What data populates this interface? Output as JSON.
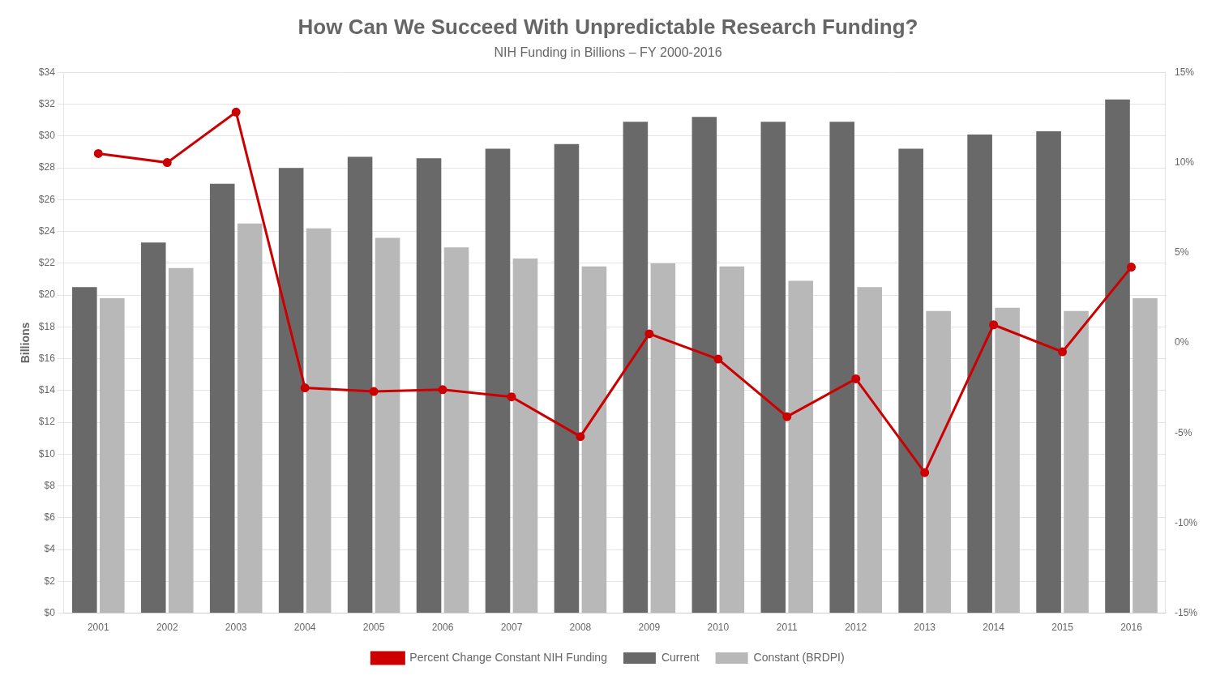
{
  "chart_data": {
    "type": "bar",
    "title": "How Can We Succeed With Unpredictable Research Funding?",
    "subtitle": "NIH Funding in Billions – FY 2000-2016",
    "ylabel": "Billions",
    "categories": [
      "2001",
      "2002",
      "2003",
      "2004",
      "2005",
      "2006",
      "2007",
      "2008",
      "2009",
      "2010",
      "2011",
      "2012",
      "2013",
      "2014",
      "2015",
      "2016"
    ],
    "series": [
      {
        "name": "Current",
        "type": "bar",
        "color": "#696969",
        "values": [
          20.5,
          23.3,
          27.0,
          28.0,
          28.7,
          28.6,
          29.2,
          29.5,
          30.9,
          31.2,
          30.9,
          30.9,
          29.2,
          30.1,
          30.3,
          32.3
        ]
      },
      {
        "name": "Constant (BRDPI)",
        "type": "bar",
        "color": "#b8b8b8",
        "values": [
          19.8,
          21.7,
          24.5,
          24.2,
          23.6,
          23.0,
          22.3,
          21.8,
          22.0,
          21.8,
          20.9,
          20.5,
          19.0,
          19.2,
          19.0,
          19.8
        ]
      },
      {
        "name": "Percent Change Constant NIH Funding",
        "type": "line",
        "color": "#cc0000",
        "marker": "circle",
        "axis": "y2",
        "values": [
          10.5,
          10.0,
          12.8,
          -2.5,
          -2.7,
          -2.6,
          -3.0,
          -5.2,
          0.5,
          -0.9,
          -4.1,
          -2.0,
          -7.2,
          1.0,
          -0.5,
          4.2
        ]
      }
    ],
    "ylim": [
      0,
      34
    ],
    "yticks": [
      {
        "value": 0,
        "label": "$0"
      },
      {
        "value": 2,
        "label": "$2"
      },
      {
        "value": 4,
        "label": "$4"
      },
      {
        "value": 6,
        "label": "$6"
      },
      {
        "value": 8,
        "label": "$8"
      },
      {
        "value": 10,
        "label": "$10"
      },
      {
        "value": 12,
        "label": "$12"
      },
      {
        "value": 14,
        "label": "$14"
      },
      {
        "value": 16,
        "label": "$16"
      },
      {
        "value": 18,
        "label": "$18"
      },
      {
        "value": 20,
        "label": "$20"
      },
      {
        "value": 22,
        "label": "$22"
      },
      {
        "value": 24,
        "label": "$24"
      },
      {
        "value": 26,
        "label": "$26"
      },
      {
        "value": 28,
        "label": "$28"
      },
      {
        "value": 30,
        "label": "$30"
      },
      {
        "value": 32,
        "label": "$32"
      },
      {
        "value": 34,
        "label": "$34"
      }
    ],
    "y2lim": [
      -15,
      15
    ],
    "y2ticks": [
      {
        "value": -15,
        "label": "-15%"
      },
      {
        "value": -10,
        "label": "-10%"
      },
      {
        "value": -5,
        "label": "-5%"
      },
      {
        "value": 0,
        "label": "0%"
      },
      {
        "value": 5,
        "label": "5%"
      },
      {
        "value": 10,
        "label": "10%"
      },
      {
        "value": 15,
        "label": "15%"
      }
    ],
    "grid": true,
    "legend": "bottom"
  }
}
